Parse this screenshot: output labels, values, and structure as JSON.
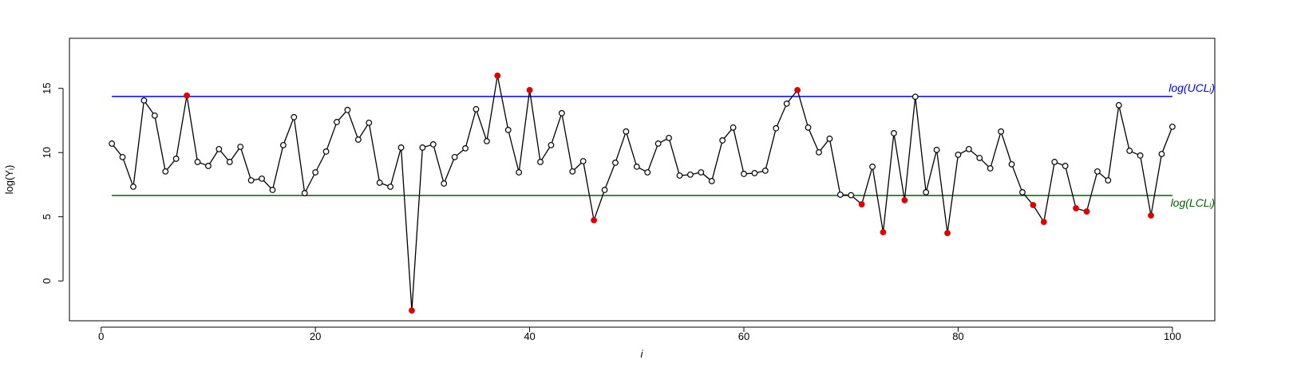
{
  "chart_data": {
    "type": "line",
    "x_label": "i",
    "y_label": "log(Yᵢ)",
    "x": [
      1,
      2,
      3,
      4,
      5,
      6,
      7,
      8,
      9,
      10,
      11,
      12,
      13,
      14,
      15,
      16,
      17,
      18,
      19,
      20,
      21,
      22,
      23,
      24,
      25,
      26,
      27,
      28,
      29,
      30,
      31,
      32,
      33,
      34,
      35,
      36,
      37,
      38,
      39,
      40,
      41,
      42,
      43,
      44,
      45,
      46,
      47,
      48,
      49,
      50,
      51,
      52,
      53,
      54,
      55,
      56,
      57,
      58,
      59,
      60,
      61,
      62,
      63,
      64,
      65,
      66,
      67,
      68,
      69,
      70,
      71,
      72,
      73,
      74,
      75,
      76,
      77,
      78,
      79,
      80,
      81,
      82,
      83,
      84,
      85,
      86,
      87,
      88,
      89,
      90,
      91,
      92,
      93,
      94,
      95,
      96,
      97,
      98,
      99,
      100
    ],
    "series": [
      {
        "color": "#000000",
        "out_color": "#e00000",
        "values": [
          10.7,
          9.65,
          7.34,
          14.06,
          12.88,
          8.53,
          9.52,
          14.44,
          9.27,
          8.96,
          10.27,
          9.27,
          10.45,
          7.84,
          7.97,
          7.09,
          10.58,
          12.76,
          6.84,
          8.46,
          10.08,
          12.38,
          13.32,
          11.01,
          12.32,
          7.65,
          7.34,
          10.39,
          -2.3,
          10.39,
          10.64,
          7.59,
          9.65,
          10.33,
          13.38,
          10.89,
          15.99,
          11.76,
          8.46,
          14.87,
          9.27,
          10.58,
          13.07,
          8.53,
          9.33,
          4.73,
          7.09,
          9.21,
          11.64,
          8.9,
          8.46,
          10.7,
          11.14,
          8.21,
          8.28,
          8.46,
          7.78,
          10.95,
          11.95,
          8.34,
          8.4,
          8.59,
          11.89,
          13.81,
          14.87,
          11.95,
          10.02,
          11.08,
          6.72,
          6.68,
          5.97,
          8.9,
          3.8,
          11.51,
          6.29,
          14.35,
          6.91,
          10.21,
          3.73,
          9.83,
          10.27,
          9.58,
          8.77,
          11.64,
          9.09,
          6.91,
          5.91,
          4.6,
          9.27,
          8.96,
          5.66,
          5.41,
          8.53,
          7.84,
          13.69,
          10.14,
          9.77,
          5.1,
          9.89,
          12.01
        ]
      }
    ],
    "limits": [
      {
        "label": "log(UCLᵢ)",
        "value": 14.37,
        "color": "#0000ff",
        "kind": "upper"
      },
      {
        "label": "log(LCLᵢ)",
        "value": 6.66,
        "color": "#006400",
        "kind": "lower"
      }
    ],
    "xlim": [
      -2.96,
      103.96
    ],
    "ylim": [
      -3.1,
      18.9
    ],
    "xticks": [
      0,
      20,
      40,
      60,
      80,
      100
    ],
    "yticks": [
      0,
      5,
      10,
      15
    ]
  }
}
